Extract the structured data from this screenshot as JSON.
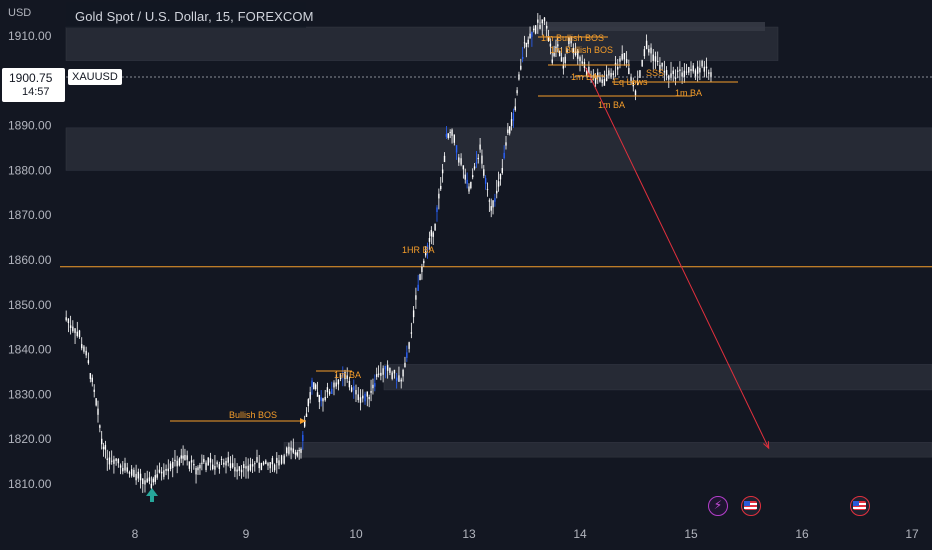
{
  "header": {
    "title": "Gold Spot / U.S. Dollar, 15, FOREXCOM",
    "unit": "USD"
  },
  "price_tag": {
    "price": "1900.75",
    "countdown": "14:57",
    "symbol": "XAUUSD"
  },
  "colors": {
    "background": "#131722",
    "candle": "#ffffff",
    "accent_blue": "#2962ff",
    "annotation": "#f59d2a",
    "zone": "#2a2e39",
    "target_arrow": "#e1303d",
    "up_arrow": "#26a69a"
  },
  "chart_data": {
    "type": "line",
    "title": "Gold Spot / U.S. Dollar, 15, FOREXCOM",
    "ylabel": "USD",
    "ylim": [
      1805,
      1915
    ],
    "y_ticks": [
      "1910.00",
      "1900.00",
      "1890.00",
      "1880.00",
      "1870.00",
      "1860.00",
      "1850.00",
      "1840.00",
      "1830.00",
      "1820.00",
      "1810.00"
    ],
    "y_tick_values": [
      1910,
      1900,
      1890,
      1880,
      1870,
      1860,
      1850,
      1840,
      1830,
      1820,
      1810
    ],
    "x_ticks": [
      "8",
      "9",
      "10",
      "13",
      "14",
      "15",
      "16",
      "17"
    ],
    "x_tick_index": [
      0,
      1,
      2,
      3,
      4,
      5,
      6,
      7
    ],
    "xlim": [
      -0.6,
      7.1
    ],
    "series": [
      {
        "values_x": [
          -0.62,
          -0.5,
          -0.42,
          -0.35,
          -0.3,
          -0.25,
          -0.15,
          -0.05,
          0.05,
          0.13,
          0.2,
          0.3,
          0.4,
          0.45,
          0.55,
          0.62,
          0.7,
          0.8,
          0.9,
          1.0,
          1.1,
          1.2,
          1.3,
          1.37,
          1.45,
          1.5,
          1.55,
          1.6,
          1.65,
          1.7,
          1.8,
          1.9,
          2.0,
          2.1,
          2.15,
          2.2,
          2.3,
          2.4,
          2.45,
          2.55,
          2.6,
          2.65,
          2.7,
          2.75,
          2.8,
          2.85,
          2.95,
          3.0,
          3.05,
          3.1,
          3.15,
          3.2,
          3.25,
          3.3,
          3.35,
          3.4,
          3.45,
          3.5,
          3.55,
          3.6,
          3.7,
          3.75,
          3.8,
          3.85,
          3.9,
          4.0,
          4.1,
          4.2,
          4.3,
          4.4,
          4.5,
          4.6,
          4.7,
          4.8,
          4.9,
          5.0,
          5.1,
          5.2
        ],
        "values_y": [
          1847,
          1843,
          1837,
          1828,
          1820,
          1816,
          1815,
          1813,
          1811,
          1810,
          1812,
          1814,
          1815,
          1816,
          1813,
          1815,
          1814,
          1815,
          1814,
          1813,
          1815,
          1814,
          1815,
          1817,
          1817,
          1818,
          1826,
          1832,
          1830,
          1829,
          1832,
          1834,
          1830,
          1829,
          1832,
          1835,
          1835,
          1833,
          1838,
          1854,
          1860,
          1864,
          1868,
          1876,
          1887,
          1888,
          1880,
          1875,
          1880,
          1885,
          1877,
          1872,
          1875,
          1880,
          1888,
          1892,
          1900,
          1908,
          1910,
          1912,
          1913,
          1905,
          1908,
          1903,
          1909,
          1905,
          1901,
          1900,
          1902,
          1906,
          1898,
          1908,
          1904,
          1901,
          1902,
          1902,
          1903,
          1901
        ]
      }
    ],
    "annotations": {
      "zones": [
        {
          "y_top": 1912,
          "y_bottom": 1904.5,
          "label": ""
        },
        {
          "y_top": 1889.5,
          "y_bottom": 1880,
          "label": ""
        },
        {
          "y_top": 1836.7,
          "y_bottom": 1831,
          "label": ""
        },
        {
          "y_top": 1819.3,
          "y_bottom": 1816,
          "label": ""
        }
      ],
      "horizontal_line": {
        "y": 1858.5
      },
      "labels": [
        "Bullish BOS",
        "1m BA",
        "1HR BA",
        "1m Bullish BOS",
        "1m Bullish BOS",
        "1m BA",
        "1m BA",
        "1m BA",
        "Eq Lows",
        "SSS"
      ],
      "projection": {
        "from": [
          4.05,
          1903
        ],
        "to": [
          5.7,
          1818
        ]
      }
    }
  }
}
